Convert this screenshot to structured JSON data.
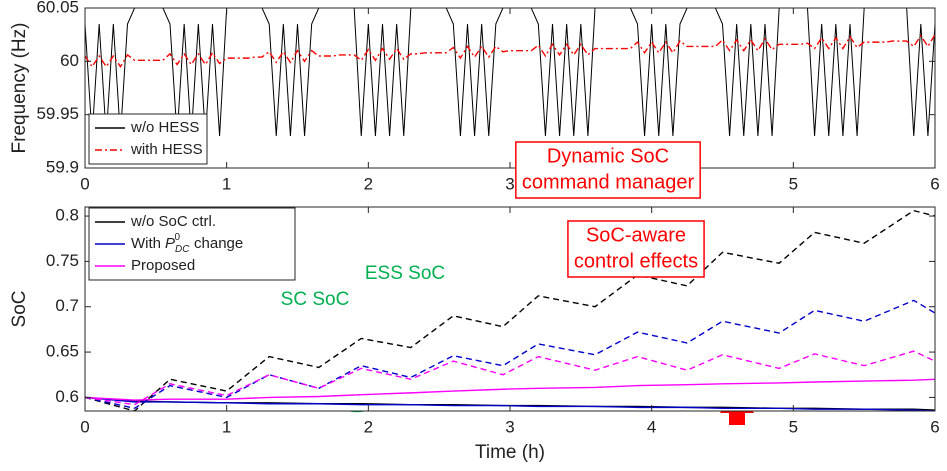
{
  "chart_data": [
    {
      "type": "line",
      "ylabel": "Frequency (Hz)",
      "xlim": [
        0,
        6
      ],
      "xticks": [
        0,
        1,
        2,
        3,
        4,
        5,
        6
      ],
      "ylim": [
        59.9,
        60.05
      ],
      "yticks": [
        59.9,
        59.95,
        60,
        60.05
      ],
      "x": [
        0,
        0.05,
        0.1,
        0.15,
        0.2,
        0.25,
        0.3,
        0.35,
        0.4,
        0.45,
        0.5,
        0.55,
        0.6,
        0.65,
        0.7,
        0.75,
        0.8,
        0.85,
        0.9,
        0.95,
        1,
        1.05,
        1.1,
        1.15,
        1.2,
        1.25,
        1.3,
        1.35,
        1.4,
        1.45,
        1.5,
        1.55,
        1.6,
        1.65,
        1.7,
        1.75,
        1.8,
        1.85,
        1.9,
        1.95,
        2,
        2.05,
        2.1,
        2.15,
        2.2,
        2.25,
        2.3,
        2.35,
        2.4,
        2.45,
        2.5,
        2.55,
        2.6,
        2.65,
        2.7,
        2.75,
        2.8,
        2.85,
        2.9,
        2.95,
        3,
        3.05,
        3.1,
        3.15,
        3.2,
        3.25,
        3.3,
        3.35,
        3.4,
        3.45,
        3.5,
        3.55,
        3.6,
        3.65,
        3.7,
        3.75,
        3.8,
        3.85,
        3.9,
        3.95,
        4,
        4.05,
        4.1,
        4.15,
        4.2,
        4.25,
        4.3,
        4.35,
        4.4,
        4.45,
        4.5,
        4.55,
        4.6,
        4.65,
        4.7,
        4.75,
        4.8,
        4.85,
        4.9,
        4.95,
        5,
        5.05,
        5.1,
        5.15,
        5.2,
        5.25,
        5.3,
        5.35,
        5.4,
        5.45,
        5.5,
        5.55,
        5.6,
        5.65,
        5.7,
        5.75,
        5.8,
        5.85,
        5.9,
        5.95,
        6
      ],
      "series": [
        {
          "name": "w/o HESS",
          "color": "#000000",
          "linestyle": "solid",
          "values": [
            60.035,
            59.93,
            60.035,
            59.93,
            60.035,
            59.93,
            60.035,
            60.05,
            60.05,
            60.05,
            60.05,
            60.05,
            60.035,
            59.93,
            60.035,
            59.93,
            60.035,
            59.93,
            60.035,
            59.93,
            60.05,
            60.05,
            60.05,
            60.05,
            60.05,
            60.05,
            60.035,
            59.93,
            60.035,
            59.93,
            60.035,
            59.93,
            60.035,
            60.05,
            60.05,
            60.05,
            60.05,
            60.05,
            60.05,
            59.93,
            60.035,
            59.93,
            60.035,
            59.93,
            60.035,
            59.93,
            60.05,
            60.05,
            60.05,
            60.05,
            60.05,
            60.05,
            60.035,
            59.93,
            60.035,
            59.93,
            60.035,
            59.93,
            60.035,
            60.05,
            60.05,
            60.05,
            60.05,
            60.05,
            60.035,
            59.93,
            60.035,
            59.93,
            60.035,
            59.93,
            60.035,
            59.93,
            60.05,
            60.05,
            60.05,
            60.05,
            60.05,
            60.05,
            60.035,
            59.93,
            60.035,
            59.93,
            60.035,
            59.93,
            60.035,
            60.05,
            60.05,
            60.05,
            60.05,
            60.05,
            60.035,
            59.93,
            60.035,
            59.93,
            60.035,
            59.93,
            60.035,
            59.93,
            60.05,
            60.05,
            60.05,
            60.05,
            60.05,
            59.93,
            60.035,
            59.93,
            60.035,
            59.93,
            60.035,
            59.93,
            60.05,
            60.05,
            60.05,
            60.05,
            60.05,
            60.05,
            60.05,
            59.93,
            60.035,
            59.93,
            60.035
          ]
        },
        {
          "name": "with HESS",
          "color": "#ff0000",
          "linestyle": "dashdot",
          "values": [
            60.005,
            59.995,
            60.005,
            59.995,
            60.005,
            59.995,
            60.006,
            60.001,
            60.001,
            60.001,
            60.001,
            60.001,
            60.007,
            59.997,
            60.007,
            59.997,
            60.007,
            59.997,
            60.008,
            59.998,
            60.003,
            60.003,
            60.003,
            60.003,
            60.004,
            60.004,
            60.009,
            59.999,
            60.009,
            59.999,
            60.01,
            60,
            60.01,
            60.005,
            60.005,
            60.005,
            60.006,
            60.006,
            60.006,
            60.001,
            60.011,
            60.001,
            60.012,
            60.002,
            60.012,
            60.002,
            60.007,
            60.007,
            60.008,
            60.008,
            60.008,
            60.008,
            60.013,
            60.003,
            60.014,
            60.004,
            60.014,
            60.004,
            60.014,
            60.009,
            60.01,
            60.01,
            60.01,
            60.01,
            60.015,
            60.005,
            60.016,
            60.006,
            60.016,
            60.006,
            60.016,
            60.006,
            60.012,
            60.012,
            60.012,
            60.012,
            60.012,
            60.012,
            60.018,
            60.008,
            60.018,
            60.008,
            60.018,
            60.008,
            60.019,
            60.014,
            60.014,
            60.014,
            60.014,
            60.014,
            60.02,
            60.01,
            60.02,
            60.01,
            60.02,
            60.01,
            60.021,
            60.011,
            60.016,
            60.016,
            60.016,
            60.016,
            60.017,
            60.012,
            60.022,
            60.012,
            60.022,
            60.012,
            60.023,
            60.013,
            60.018,
            60.018,
            60.018,
            60.018,
            60.019,
            60.019,
            60.019,
            60.014,
            60.024,
            60.014,
            60.025
          ]
        }
      ],
      "annotation": [
        "Dynamic SoC",
        "command manager"
      ]
    },
    {
      "type": "line",
      "ylabel": "SoC",
      "xlabel": "Time (h)",
      "xlim": [
        0,
        6
      ],
      "xticks": [
        0,
        1,
        2,
        3,
        4,
        5,
        6
      ],
      "ylim": [
        0.585,
        0.81
      ],
      "yticks": [
        0.6,
        0.65,
        0.7,
        0.75,
        0.8
      ],
      "x": [
        0,
        0.35,
        0.6,
        1,
        1.3,
        1.65,
        1.95,
        2.3,
        2.6,
        2.95,
        3.2,
        3.6,
        3.9,
        4.25,
        4.5,
        4.9,
        5.15,
        5.5,
        5.85,
        6
      ],
      "series": [
        {
          "name": "w/o SoC ctrl.",
          "color": "#000000",
          "linestyle": "solid",
          "values": [
            0.6,
            0.596,
            0.595,
            0.594,
            0.594,
            0.593,
            0.593,
            0.592,
            0.592,
            0.591,
            0.591,
            0.59,
            0.59,
            0.589,
            0.589,
            0.588,
            0.588,
            0.587,
            0.587,
            0.586
          ]
        },
        {
          "name": [
            "With",
            "P",
            "DC",
            "0",
            "change"
          ],
          "color": "#0000cc",
          "linestyle": "solid",
          "values": [
            0.6,
            0.595,
            0.595,
            0.594,
            0.593,
            0.593,
            0.592,
            0.592,
            0.591,
            0.591,
            0.59,
            0.59,
            0.589,
            0.589,
            0.588,
            0.588,
            0.587,
            0.587,
            0.586,
            0.585
          ]
        },
        {
          "name": "Proposed",
          "color": "#ff00ff",
          "linestyle": "solid",
          "values": [
            0.6,
            0.597,
            0.598,
            0.598,
            0.6,
            0.601,
            0.603,
            0.605,
            0.607,
            0.609,
            0.61,
            0.611,
            0.613,
            0.614,
            0.615,
            0.616,
            0.617,
            0.618,
            0.619,
            0.62
          ]
        },
        {
          "color": "#000000",
          "linestyle": "dashed",
          "values": [
            0.6,
            0.585,
            0.62,
            0.607,
            0.645,
            0.633,
            0.665,
            0.655,
            0.69,
            0.678,
            0.712,
            0.7,
            0.735,
            0.723,
            0.76,
            0.748,
            0.782,
            0.77,
            0.806,
            0.8
          ]
        },
        {
          "color": "#0000cc",
          "linestyle": "dashed",
          "values": [
            0.6,
            0.588,
            0.613,
            0.6,
            0.625,
            0.61,
            0.635,
            0.622,
            0.646,
            0.635,
            0.659,
            0.647,
            0.672,
            0.66,
            0.684,
            0.671,
            0.696,
            0.684,
            0.707,
            0.693
          ]
        },
        {
          "color": "#ff00ff",
          "linestyle": "dashed",
          "values": [
            0.6,
            0.592,
            0.615,
            0.602,
            0.625,
            0.61,
            0.632,
            0.62,
            0.64,
            0.625,
            0.645,
            0.63,
            0.645,
            0.63,
            0.647,
            0.632,
            0.648,
            0.635,
            0.651,
            0.64
          ]
        }
      ],
      "annotations": [
        {
          "text": [
            "SoC-aware",
            "control effects"
          ],
          "color": "#ff0000"
        },
        {
          "text": [
            "SC SoC"
          ],
          "color": "#00b050"
        },
        {
          "text": [
            "ESS SoC"
          ],
          "color": "#00b050"
        }
      ]
    }
  ]
}
